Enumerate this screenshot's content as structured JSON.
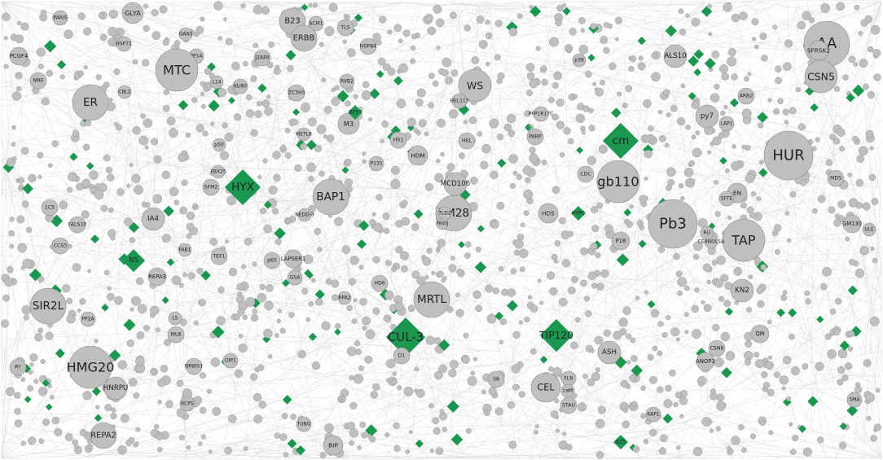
{
  "colors": {
    "node": "#bfbfbf",
    "node_stroke": "#8a8a8a",
    "diamond": "#1a9850",
    "edge": "#d9d9d9"
  },
  "nodes": [
    {
      "label": "GLYA",
      "shape": "circle"
    },
    {
      "label": "B23",
      "shape": "circle"
    },
    {
      "label": "ACM1",
      "shape": "circle"
    },
    {
      "label": "ERBB",
      "shape": "circle"
    },
    {
      "label": "TLS",
      "shape": "circle"
    },
    {
      "label": "PARIS",
      "shape": "circle"
    },
    {
      "label": "PCGF4",
      "shape": "circle"
    },
    {
      "label": "NNE",
      "shape": "circle"
    },
    {
      "label": "HSP84",
      "shape": "circle"
    },
    {
      "label": "J2AF6",
      "shape": "circle"
    },
    {
      "label": "PP1A",
      "shape": "circle"
    },
    {
      "label": "Hc",
      "shape": "circle"
    },
    {
      "label": "MTC",
      "shape": "circle"
    },
    {
      "label": "L14",
      "shape": "circle"
    },
    {
      "label": "ER",
      "shape": "circle"
    },
    {
      "label": "KU80",
      "shape": "circle"
    },
    {
      "label": "RVB2",
      "shape": "circle"
    },
    {
      "label": "ZC3H5",
      "shape": "circle"
    },
    {
      "label": "WS",
      "shape": "circle"
    },
    {
      "label": "Bx42",
      "shape": "circle"
    },
    {
      "label": "AA",
      "shape": "circle"
    },
    {
      "label": "SFRSK2",
      "shape": "circle"
    },
    {
      "label": "CSN5",
      "shape": "circle"
    },
    {
      "label": "ALS10",
      "shape": "circle"
    },
    {
      "label": "p38",
      "shape": "circle"
    },
    {
      "label": "ARB2",
      "shape": "circle"
    },
    {
      "label": "LAP1",
      "shape": "circle"
    },
    {
      "label": "py7",
      "shape": "circle"
    },
    {
      "label": "M3",
      "shape": "circle"
    },
    {
      "label": "BP37",
      "shape": "diamond"
    },
    {
      "label": "HEL113",
      "shape": "circle"
    },
    {
      "label": "PPP1R17C",
      "shape": "circle"
    },
    {
      "label": "cm",
      "shape": "diamond"
    },
    {
      "label": "PARP",
      "shape": "circle"
    },
    {
      "label": "HS1",
      "shape": "circle"
    },
    {
      "label": "HDM",
      "shape": "circle"
    },
    {
      "label": "HEL",
      "shape": "circle"
    },
    {
      "label": "HUR",
      "shape": "circle"
    },
    {
      "label": "MCD106",
      "shape": "circle"
    },
    {
      "label": "CDC",
      "shape": "circle"
    },
    {
      "label": "gb110",
      "shape": "circle"
    },
    {
      "label": "BAP1",
      "shape": "circle"
    },
    {
      "label": "SFM2",
      "shape": "circle"
    },
    {
      "label": "HYX",
      "shape": "diamond"
    },
    {
      "label": "P135",
      "shape": "circle"
    },
    {
      "label": "FBX25",
      "shape": "circle"
    },
    {
      "label": "p50",
      "shape": "circle"
    },
    {
      "label": "METL8",
      "shape": "circle"
    },
    {
      "label": "1C5",
      "shape": "circle"
    },
    {
      "label": "IA4",
      "shape": "circle"
    },
    {
      "label": "FALS10",
      "shape": "circle"
    },
    {
      "label": "NEDD-8",
      "shape": "circle"
    },
    {
      "label": "BM28",
      "shape": "circle"
    },
    {
      "label": "PR65",
      "shape": "circle"
    },
    {
      "label": "TLD2",
      "shape": "circle"
    },
    {
      "label": "HD5",
      "shape": "circle"
    },
    {
      "label": "HYPC",
      "shape": "diamond"
    },
    {
      "label": "Pb3",
      "shape": "circle"
    },
    {
      "label": "P18",
      "shape": "circle"
    },
    {
      "label": "TAP",
      "shape": "circle"
    },
    {
      "label": "EN",
      "shape": "circle"
    },
    {
      "label": "SFTE",
      "shape": "circle"
    },
    {
      "label": "MDS",
      "shape": "circle"
    },
    {
      "label": "GM130",
      "shape": "circle"
    },
    {
      "label": "ULE",
      "shape": "circle"
    },
    {
      "label": "CCS3",
      "shape": "circle"
    },
    {
      "label": "NS",
      "shape": "diamond"
    },
    {
      "label": "FAB1",
      "shape": "circle"
    },
    {
      "label": "TEF1",
      "shape": "circle"
    },
    {
      "label": "REPA3",
      "shape": "circle"
    },
    {
      "label": "p65",
      "shape": "circle"
    },
    {
      "label": "LAPSER1",
      "shape": "circle"
    },
    {
      "label": "GSA",
      "shape": "circle"
    },
    {
      "label": "HD6",
      "shape": "circle"
    },
    {
      "label": "MRTL",
      "shape": "circle"
    },
    {
      "label": "SIR2L",
      "shape": "circle"
    },
    {
      "label": "KN2",
      "shape": "circle"
    },
    {
      "label": "CEANOLSA",
      "shape": "circle"
    },
    {
      "label": "RLI",
      "shape": "circle"
    },
    {
      "label": "ML8",
      "shape": "circle"
    },
    {
      "label": "L5",
      "shape": "circle"
    },
    {
      "label": "CUL-3",
      "shape": "diamond"
    },
    {
      "label": "TIP120",
      "shape": "diamond"
    },
    {
      "label": "ASH",
      "shape": "circle"
    },
    {
      "label": "QM",
      "shape": "circle"
    },
    {
      "label": "ANOP3",
      "shape": "circle"
    },
    {
      "label": "CSN6",
      "shape": "circle"
    },
    {
      "label": "HMG20",
      "shape": "circle"
    },
    {
      "label": "HNRPU",
      "shape": "circle"
    },
    {
      "label": "BRWS1",
      "shape": "circle"
    },
    {
      "label": "RCPS",
      "shape": "circle"
    },
    {
      "label": "OIP1",
      "shape": "circle"
    },
    {
      "label": "RY",
      "shape": "circle"
    },
    {
      "label": "REPA2",
      "shape": "circle"
    },
    {
      "label": "TUBG",
      "shape": "circle"
    },
    {
      "label": "BIP",
      "shape": "circle"
    },
    {
      "label": "S8",
      "shape": "circle"
    },
    {
      "label": "CEL",
      "shape": "circle"
    },
    {
      "label": "FLN",
      "shape": "circle"
    },
    {
      "label": "caM",
      "shape": "circle"
    },
    {
      "label": "STAU",
      "shape": "circle"
    },
    {
      "label": "KAP1",
      "shape": "circle"
    },
    {
      "label": "BZS",
      "shape": "diamond"
    },
    {
      "label": "SMA",
      "shape": "circle"
    },
    {
      "label": "D1",
      "shape": "circle"
    },
    {
      "label": "RPA2",
      "shape": "circle"
    },
    {
      "label": "PP2A",
      "shape": "circle"
    },
    {
      "label": "HSP72",
      "shape": "circle"
    },
    {
      "label": "GAN1",
      "shape": "circle"
    },
    {
      "label": "CBL2",
      "shape": "circle"
    }
  ]
}
